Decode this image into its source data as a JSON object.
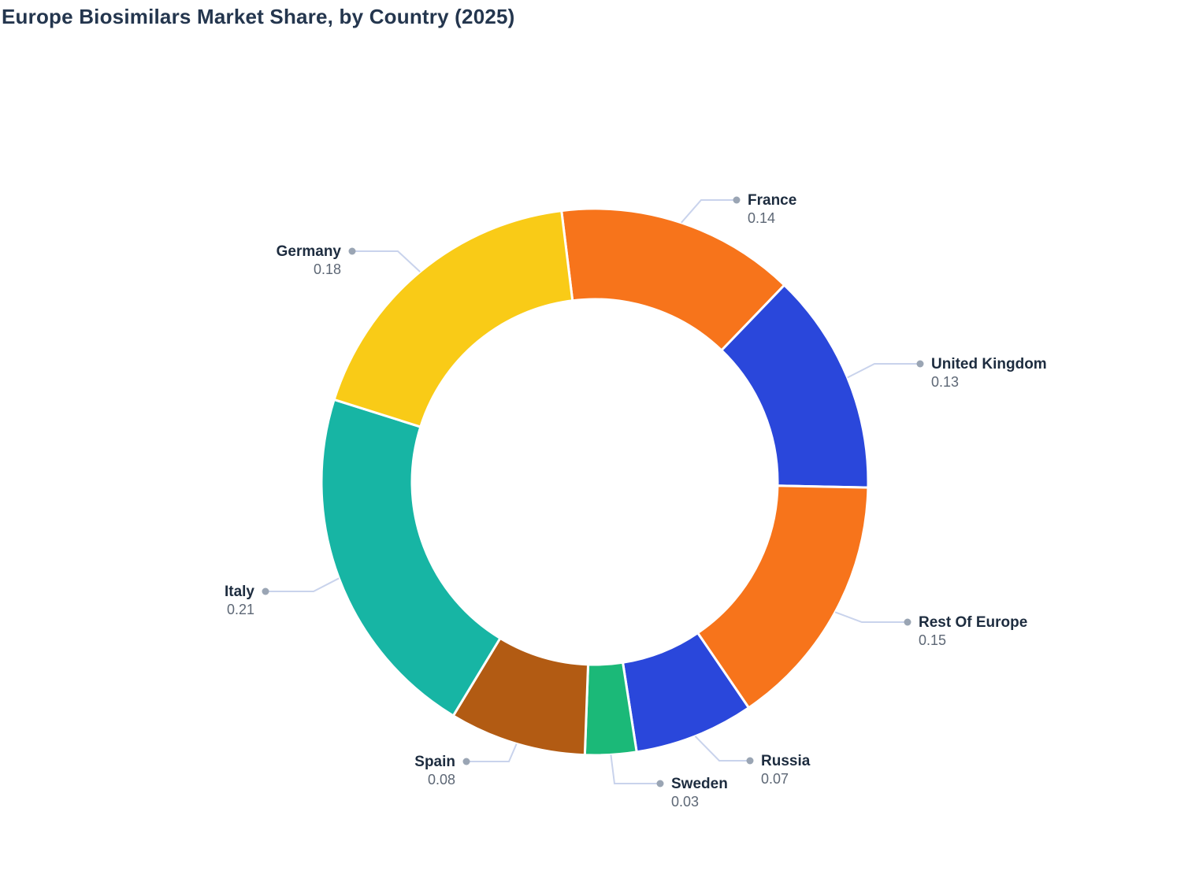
{
  "title": "Europe Biosimilars Market Share, by Country (2025)",
  "chart_data": {
    "type": "pie",
    "subtype": "donut",
    "title": "Europe Biosimilars Market Share, by Country (2025)",
    "labels": [
      "France",
      "United Kingdom",
      "Rest Of Europe",
      "Russia",
      "Sweden",
      "Spain",
      "Italy",
      "Germany"
    ],
    "values": [
      0.14,
      0.13,
      0.15,
      0.07,
      0.03,
      0.08,
      0.21,
      0.18
    ],
    "colors": [
      "#F7741B",
      "#2A47DB",
      "#F7741B",
      "#2A47DB",
      "#1BB978",
      "#B25B13",
      "#17B5A4",
      "#F9CB17"
    ],
    "start_angle_deg": -7,
    "direction": "clockwise",
    "inner_radius_ratio": 0.668,
    "legend_position": "none",
    "data_labels": "name and value on leader lines",
    "value_format": "0.00"
  },
  "style_colors": {
    "title_text": "#24364E",
    "label_name_text": "#1D2C3F",
    "label_value_text": "#5D6775",
    "leader_line": "#C9D3EC",
    "leader_dot": "#9AA5B4",
    "slice_gap": "#FFFFFF",
    "background": "#FFFFFF"
  }
}
